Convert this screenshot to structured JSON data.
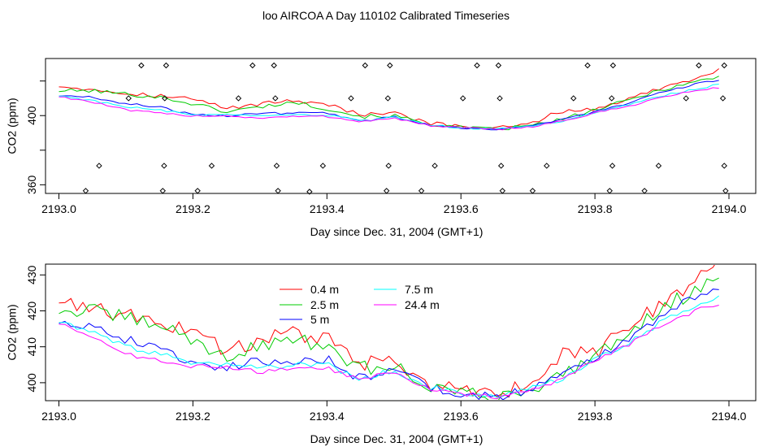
{
  "title": "loo AIRCOA A  Day 110102  Calibrated Timeseries",
  "chart_data": [
    {
      "type": "line",
      "xlabel": "Day since Dec. 31, 2004 (GMT+1)",
      "ylabel": "CO2 (ppm)",
      "xlim": [
        2192.98,
        2194.04
      ],
      "ylim": [
        355.0,
        433.0
      ],
      "xticks": [
        2193.0,
        2193.2,
        2193.4,
        2193.6,
        2193.8,
        2194.0
      ],
      "xtick_labels": [
        "2193.0",
        "2193.2",
        "2193.4",
        "2193.6",
        "2193.8",
        "2194.0"
      ],
      "yticks": [
        360,
        380,
        400,
        420
      ],
      "ytick_labels": [
        "360",
        "",
        "400",
        ""
      ],
      "series_colors": [
        "#ff0000",
        "#00cc00",
        "#0000ff",
        "#00ffff",
        "#ff00ff"
      ],
      "point_markers": [
        {
          "x": 2193.123,
          "y": 429.0
        },
        {
          "x": 2193.16,
          "y": 429.0
        },
        {
          "x": 2193.289,
          "y": 429.0
        },
        {
          "x": 2193.321,
          "y": 429.0
        },
        {
          "x": 2193.457,
          "y": 429.0
        },
        {
          "x": 2193.494,
          "y": 429.0
        },
        {
          "x": 2193.624,
          "y": 429.0
        },
        {
          "x": 2193.656,
          "y": 429.0
        },
        {
          "x": 2193.789,
          "y": 429.0
        },
        {
          "x": 2193.827,
          "y": 429.0
        },
        {
          "x": 2193.955,
          "y": 429.0
        },
        {
          "x": 2193.993,
          "y": 429.0
        },
        {
          "x": 2193.104,
          "y": 410.0
        },
        {
          "x": 2193.158,
          "y": 410.0
        },
        {
          "x": 2193.268,
          "y": 410.0
        },
        {
          "x": 2193.323,
          "y": 410.0
        },
        {
          "x": 2193.436,
          "y": 410.0
        },
        {
          "x": 2193.491,
          "y": 410.0
        },
        {
          "x": 2193.603,
          "y": 410.0
        },
        {
          "x": 2193.658,
          "y": 410.0
        },
        {
          "x": 2193.768,
          "y": 410.0
        },
        {
          "x": 2193.825,
          "y": 410.0
        },
        {
          "x": 2193.936,
          "y": 410.0
        },
        {
          "x": 2193.991,
          "y": 410.0
        },
        {
          "x": 2193.06,
          "y": 371.0
        },
        {
          "x": 2193.157,
          "y": 371.0
        },
        {
          "x": 2193.228,
          "y": 371.0
        },
        {
          "x": 2193.325,
          "y": 371.0
        },
        {
          "x": 2193.394,
          "y": 371.0
        },
        {
          "x": 2193.492,
          "y": 371.0
        },
        {
          "x": 2193.561,
          "y": 371.0
        },
        {
          "x": 2193.66,
          "y": 371.0
        },
        {
          "x": 2193.728,
          "y": 371.0
        },
        {
          "x": 2193.826,
          "y": 371.0
        },
        {
          "x": 2193.895,
          "y": 371.0
        },
        {
          "x": 2193.993,
          "y": 371.0
        },
        {
          "x": 2193.04,
          "y": 356.5
        },
        {
          "x": 2193.155,
          "y": 356.5
        },
        {
          "x": 2193.207,
          "y": 356.5
        },
        {
          "x": 2193.327,
          "y": 356.5
        },
        {
          "x": 2193.374,
          "y": 356.0
        },
        {
          "x": 2193.489,
          "y": 356.5
        },
        {
          "x": 2193.541,
          "y": 356.5
        },
        {
          "x": 2193.662,
          "y": 356.5
        },
        {
          "x": 2193.707,
          "y": 356.5
        },
        {
          "x": 2193.822,
          "y": 356.5
        },
        {
          "x": 2193.874,
          "y": 356.5
        },
        {
          "x": 2193.995,
          "y": 356.5
        }
      ]
    },
    {
      "type": "line",
      "xlabel": "Day since Dec. 31, 2004 (GMT+1)",
      "ylabel": "CO2 (ppm)",
      "xlim": [
        2192.98,
        2194.04
      ],
      "ylim": [
        395.0,
        433.0
      ],
      "xticks": [
        2193.0,
        2193.2,
        2193.4,
        2193.6,
        2193.8,
        2194.0
      ],
      "xtick_labels": [
        "2193.0",
        "2193.2",
        "2193.4",
        "2193.6",
        "2193.8",
        "2194.0"
      ],
      "yticks": [
        400,
        410,
        420,
        430
      ],
      "ytick_labels": [
        "400",
        "410",
        "420",
        "430"
      ],
      "legend_placement": "top-center",
      "x": [
        2193.0,
        2193.05,
        2193.1,
        2193.15,
        2193.2,
        2193.25,
        2193.3,
        2193.35,
        2193.4,
        2193.45,
        2193.5,
        2193.55,
        2193.6,
        2193.65,
        2193.7,
        2193.75,
        2193.8,
        2193.85,
        2193.9,
        2193.95,
        2193.985
      ],
      "series": [
        {
          "name": "0.4 m",
          "color": "#ff0000",
          "values": [
            423.0,
            421.0,
            418.5,
            417.0,
            415.0,
            409.0,
            412.0,
            414.0,
            412.0,
            405.0,
            406.0,
            400.0,
            397.5,
            396.5,
            399.0,
            407.5,
            408.5,
            415.0,
            422.0,
            428.0,
            432.5
          ]
        },
        {
          "name": "2.5 m",
          "color": "#00cc00",
          "values": [
            420.0,
            420.0,
            418.0,
            416.0,
            412.0,
            407.0,
            410.0,
            413.0,
            409.0,
            404.0,
            404.5,
            399.5,
            397.0,
            396.0,
            398.0,
            402.0,
            408.0,
            414.0,
            421.0,
            425.5,
            429.0
          ]
        },
        {
          "name": "5 m",
          "color": "#0000ff",
          "values": [
            417.0,
            416.0,
            412.0,
            410.0,
            405.0,
            404.5,
            406.0,
            406.0,
            406.5,
            401.0,
            404.0,
            399.0,
            397.0,
            396.0,
            398.0,
            402.0,
            407.0,
            412.0,
            419.0,
            424.0,
            427.0
          ]
        },
        {
          "name": "7.5 m",
          "color": "#00ffff",
          "values": [
            417.0,
            414.0,
            410.0,
            408.0,
            405.0,
            405.0,
            404.0,
            405.0,
            405.0,
            401.0,
            403.5,
            399.0,
            397.0,
            396.0,
            398.0,
            401.0,
            406.5,
            411.0,
            417.0,
            421.0,
            424.0
          ]
        },
        {
          "name": "24.4 m",
          "color": "#ff00ff",
          "values": [
            416.5,
            413.0,
            408.0,
            406.0,
            404.5,
            404.5,
            403.0,
            404.0,
            404.0,
            401.0,
            403.0,
            398.5,
            397.0,
            396.0,
            397.5,
            401.0,
            406.0,
            410.5,
            416.0,
            420.0,
            422.0
          ]
        }
      ]
    }
  ]
}
